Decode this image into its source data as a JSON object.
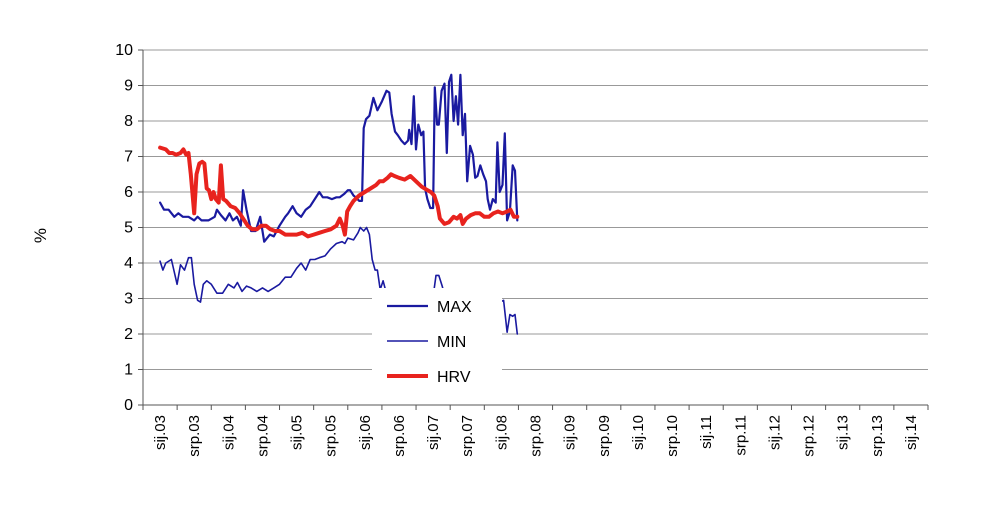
{
  "chart_data": {
    "type": "line",
    "title": "",
    "xlabel": "",
    "ylabel": "%",
    "ylim": [
      0,
      10
    ],
    "yticks": [
      "0",
      "1",
      "2",
      "3",
      "4",
      "5",
      "6",
      "7",
      "8",
      "9",
      "10"
    ],
    "xticks": [
      "sij.03",
      "srp.03",
      "sij.04",
      "srp.04",
      "sij.05",
      "srp.05",
      "sij.06",
      "srp.06",
      "sij.07",
      "srp.07",
      "sij.08",
      "srp.08",
      "sij.09",
      "srp.09",
      "sij.10",
      "srp.10",
      "sij.11",
      "srp.11",
      "sij.12",
      "srp.12",
      "sij.13",
      "srp.13",
      "sij.14"
    ],
    "grid": "horizontal",
    "legend": "center",
    "series": [
      {
        "name": "MAX",
        "color": "#1a1aa0",
        "points": [
          [
            0,
            5.7
          ],
          [
            0.7,
            5.5
          ],
          [
            1.5,
            5.5
          ],
          [
            2.5,
            5.3
          ],
          [
            3.2,
            5.4
          ],
          [
            4,
            5.3
          ],
          [
            5,
            5.3
          ],
          [
            6,
            5.2
          ],
          [
            6.6,
            5.3
          ],
          [
            7.3,
            5.2
          ],
          [
            8.5,
            5.2
          ],
          [
            9.6,
            5.3
          ],
          [
            10,
            5.5
          ],
          [
            10.7,
            5.35
          ],
          [
            11.5,
            5.2
          ],
          [
            12.2,
            5.4
          ],
          [
            12.8,
            5.2
          ],
          [
            13.5,
            5.3
          ],
          [
            14.2,
            5.05
          ],
          [
            14.6,
            6.05
          ],
          [
            15.2,
            5.5
          ],
          [
            16,
            4.9
          ],
          [
            16.8,
            4.9
          ],
          [
            17.6,
            5.3
          ],
          [
            18.3,
            4.6
          ],
          [
            19.3,
            4.8
          ],
          [
            20,
            4.75
          ],
          [
            21,
            5.05
          ],
          [
            22,
            5.3
          ],
          [
            22.5,
            5.4
          ],
          [
            23.3,
            5.6
          ],
          [
            24,
            5.4
          ],
          [
            24.8,
            5.3
          ],
          [
            25.6,
            5.5
          ],
          [
            26.4,
            5.6
          ],
          [
            27.6,
            5.9
          ],
          [
            28,
            6.0
          ],
          [
            28.6,
            5.85
          ],
          [
            29.4,
            5.85
          ],
          [
            30.2,
            5.8
          ],
          [
            31,
            5.85
          ],
          [
            31.6,
            5.85
          ],
          [
            32.4,
            5.95
          ],
          [
            33,
            6.05
          ],
          [
            33.4,
            6.05
          ],
          [
            34,
            5.9
          ],
          [
            34.4,
            5.85
          ],
          [
            35,
            5.75
          ],
          [
            35.5,
            5.75
          ],
          [
            35.8,
            7.8
          ],
          [
            36.2,
            8.05
          ],
          [
            36.8,
            8.15
          ],
          [
            37.5,
            8.65
          ],
          [
            38.2,
            8.3
          ],
          [
            39,
            8.55
          ],
          [
            39.8,
            8.85
          ],
          [
            40.3,
            8.8
          ],
          [
            40.7,
            8.2
          ],
          [
            41.3,
            7.7
          ],
          [
            41.8,
            7.6
          ],
          [
            42.4,
            7.45
          ],
          [
            43,
            7.35
          ],
          [
            43.6,
            7.45
          ],
          [
            43.8,
            7.75
          ],
          [
            44.2,
            7.35
          ],
          [
            44.6,
            8.7
          ],
          [
            45,
            7.2
          ],
          [
            45.4,
            7.9
          ],
          [
            45.9,
            7.6
          ],
          [
            46.3,
            7.7
          ],
          [
            46.6,
            6.1
          ],
          [
            47,
            5.8
          ],
          [
            47.5,
            5.55
          ],
          [
            48,
            5.55
          ],
          [
            48.3,
            8.95
          ],
          [
            48.7,
            7.9
          ],
          [
            49,
            7.9
          ],
          [
            49.5,
            8.85
          ],
          [
            50,
            9.05
          ],
          [
            50.4,
            7.1
          ],
          [
            50.8,
            9.1
          ],
          [
            51.2,
            9.3
          ],
          [
            51.6,
            8.0
          ],
          [
            52,
            8.7
          ],
          [
            52.4,
            7.9
          ],
          [
            52.8,
            9.3
          ],
          [
            53.2,
            7.6
          ],
          [
            53.6,
            8.2
          ],
          [
            54,
            6.3
          ],
          [
            54.5,
            7.3
          ],
          [
            55,
            7.05
          ],
          [
            55.4,
            6.4
          ],
          [
            55.8,
            6.45
          ],
          [
            56.3,
            6.75
          ],
          [
            56.8,
            6.5
          ],
          [
            57.3,
            6.3
          ],
          [
            57.6,
            5.8
          ],
          [
            58,
            5.5
          ],
          [
            58.5,
            5.8
          ],
          [
            59,
            5.7
          ],
          [
            59.3,
            7.4
          ],
          [
            59.7,
            6.0
          ],
          [
            60.2,
            6.2
          ],
          [
            60.6,
            7.65
          ],
          [
            61,
            5.2
          ],
          [
            61.5,
            5.45
          ],
          [
            62,
            6.75
          ],
          [
            62.4,
            6.6
          ],
          [
            62.8,
            5.2
          ]
        ]
      },
      {
        "name": "MIN",
        "color": "#1a1aa0",
        "points": [
          [
            0,
            4.05
          ],
          [
            0.5,
            3.8
          ],
          [
            1,
            4.0
          ],
          [
            2,
            4.1
          ],
          [
            3,
            3.4
          ],
          [
            3.6,
            3.95
          ],
          [
            4.3,
            3.8
          ],
          [
            5,
            4.15
          ],
          [
            5.5,
            4.15
          ],
          [
            6,
            3.4
          ],
          [
            6.6,
            2.95
          ],
          [
            7.1,
            2.9
          ],
          [
            7.6,
            3.4
          ],
          [
            8.2,
            3.5
          ],
          [
            9,
            3.4
          ],
          [
            10,
            3.15
          ],
          [
            11,
            3.15
          ],
          [
            12,
            3.4
          ],
          [
            13,
            3.3
          ],
          [
            13.6,
            3.45
          ],
          [
            14.4,
            3.2
          ],
          [
            15.2,
            3.35
          ],
          [
            16,
            3.3
          ],
          [
            17,
            3.2
          ],
          [
            18,
            3.3
          ],
          [
            19,
            3.2
          ],
          [
            20,
            3.3
          ],
          [
            21,
            3.4
          ],
          [
            22,
            3.6
          ],
          [
            23,
            3.6
          ],
          [
            24,
            3.85
          ],
          [
            24.8,
            4.0
          ],
          [
            25.6,
            3.8
          ],
          [
            26.4,
            4.1
          ],
          [
            27.2,
            4.1
          ],
          [
            28,
            4.15
          ],
          [
            29,
            4.2
          ],
          [
            30,
            4.4
          ],
          [
            31,
            4.55
          ],
          [
            32,
            4.6
          ],
          [
            32.5,
            4.55
          ],
          [
            33,
            4.7
          ],
          [
            34,
            4.65
          ],
          [
            34.8,
            4.85
          ],
          [
            35.2,
            5.0
          ],
          [
            35.8,
            4.9
          ],
          [
            36.3,
            5.0
          ],
          [
            36.8,
            4.8
          ],
          [
            37.3,
            4.1
          ],
          [
            37.8,
            3.8
          ],
          [
            38.2,
            3.8
          ],
          [
            38.7,
            3.25
          ],
          [
            39.2,
            3.5
          ],
          [
            39.7,
            3.2
          ],
          [
            40.2,
            3.0
          ],
          [
            40.8,
            3.05
          ],
          [
            41.2,
            2.75
          ],
          [
            41.8,
            2.9
          ],
          [
            42.3,
            2.35
          ],
          [
            42.9,
            2.7
          ],
          [
            43.5,
            2.75
          ],
          [
            44,
            3.0
          ],
          [
            44.5,
            3.0
          ],
          [
            45,
            3.05
          ],
          [
            45.5,
            2.85
          ],
          [
            46,
            2.95
          ],
          [
            46.5,
            3.05
          ],
          [
            47,
            2.85
          ],
          [
            47.5,
            2.95
          ],
          [
            48,
            3.05
          ],
          [
            48.5,
            3.65
          ],
          [
            49,
            3.65
          ],
          [
            49.6,
            3.35
          ],
          [
            50,
            3.1
          ],
          [
            50.5,
            2.85
          ],
          [
            51,
            2.9
          ],
          [
            51.6,
            2.75
          ],
          [
            52.2,
            2.7
          ],
          [
            52.8,
            2.65
          ],
          [
            53.6,
            2.65
          ],
          [
            54.2,
            2.4
          ],
          [
            54.8,
            2.45
          ],
          [
            55.4,
            2.4
          ],
          [
            56,
            2.35
          ],
          [
            56.5,
            2.45
          ],
          [
            57,
            2.7
          ],
          [
            57.5,
            2.7
          ],
          [
            58,
            2.7
          ],
          [
            58.6,
            2.8
          ],
          [
            59.2,
            2.85
          ],
          [
            59.8,
            2.9
          ],
          [
            60.4,
            2.95
          ],
          [
            61,
            2.05
          ],
          [
            61.5,
            2.55
          ],
          [
            62,
            2.5
          ],
          [
            62.4,
            2.55
          ],
          [
            62.8,
            2.0
          ]
        ]
      },
      {
        "name": "HRV",
        "color": "#e8231e",
        "points": [
          [
            0,
            7.25
          ],
          [
            1,
            7.2
          ],
          [
            1.6,
            7.1
          ],
          [
            2.2,
            7.1
          ],
          [
            2.8,
            7.05
          ],
          [
            3.6,
            7.1
          ],
          [
            4.1,
            7.2
          ],
          [
            4.6,
            7.05
          ],
          [
            5,
            7.1
          ],
          [
            5.4,
            6.5
          ],
          [
            6,
            5.4
          ],
          [
            6.4,
            6.5
          ],
          [
            6.9,
            6.8
          ],
          [
            7.4,
            6.85
          ],
          [
            7.8,
            6.8
          ],
          [
            8.2,
            6.1
          ],
          [
            8.6,
            6.05
          ],
          [
            9,
            5.8
          ],
          [
            9.4,
            6.0
          ],
          [
            9.8,
            5.8
          ],
          [
            10.3,
            5.7
          ],
          [
            10.7,
            6.75
          ],
          [
            11.1,
            5.8
          ],
          [
            11.6,
            5.75
          ],
          [
            12.4,
            5.6
          ],
          [
            13.2,
            5.55
          ],
          [
            14,
            5.4
          ],
          [
            14.8,
            5.2
          ],
          [
            15.4,
            5.05
          ],
          [
            16.2,
            4.95
          ],
          [
            17,
            4.95
          ],
          [
            17.8,
            5.05
          ],
          [
            18.6,
            5.05
          ],
          [
            19.4,
            4.95
          ],
          [
            20.2,
            4.9
          ],
          [
            21,
            4.9
          ],
          [
            22,
            4.8
          ],
          [
            23,
            4.8
          ],
          [
            24,
            4.8
          ],
          [
            25,
            4.85
          ],
          [
            26,
            4.75
          ],
          [
            27,
            4.8
          ],
          [
            28,
            4.85
          ],
          [
            29,
            4.9
          ],
          [
            30,
            4.95
          ],
          [
            31,
            5.05
          ],
          [
            31.6,
            5.25
          ],
          [
            32.1,
            5.05
          ],
          [
            32.5,
            4.8
          ],
          [
            32.9,
            5.45
          ],
          [
            33.4,
            5.6
          ],
          [
            34,
            5.75
          ],
          [
            35,
            5.9
          ],
          [
            36,
            6.0
          ],
          [
            37,
            6.1
          ],
          [
            38,
            6.2
          ],
          [
            38.6,
            6.3
          ],
          [
            39.2,
            6.3
          ],
          [
            40,
            6.4
          ],
          [
            40.6,
            6.5
          ],
          [
            41.2,
            6.45
          ],
          [
            42,
            6.4
          ],
          [
            43,
            6.35
          ],
          [
            44,
            6.45
          ],
          [
            45,
            6.3
          ],
          [
            46,
            6.15
          ],
          [
            47,
            6.05
          ],
          [
            47.6,
            6.0
          ],
          [
            48.2,
            5.9
          ],
          [
            48.8,
            5.6
          ],
          [
            49.2,
            5.25
          ],
          [
            50,
            5.1
          ],
          [
            50.8,
            5.15
          ],
          [
            51.6,
            5.3
          ],
          [
            52.2,
            5.25
          ],
          [
            52.8,
            5.35
          ],
          [
            53.2,
            5.1
          ],
          [
            53.8,
            5.25
          ],
          [
            54.6,
            5.35
          ],
          [
            55.4,
            5.4
          ],
          [
            56.2,
            5.4
          ],
          [
            57,
            5.3
          ],
          [
            57.8,
            5.3
          ],
          [
            58.6,
            5.4
          ],
          [
            59.4,
            5.45
          ],
          [
            60.2,
            5.4
          ],
          [
            61,
            5.45
          ],
          [
            61.6,
            5.5
          ],
          [
            62.2,
            5.3
          ],
          [
            62.8,
            5.3
          ]
        ]
      }
    ]
  }
}
